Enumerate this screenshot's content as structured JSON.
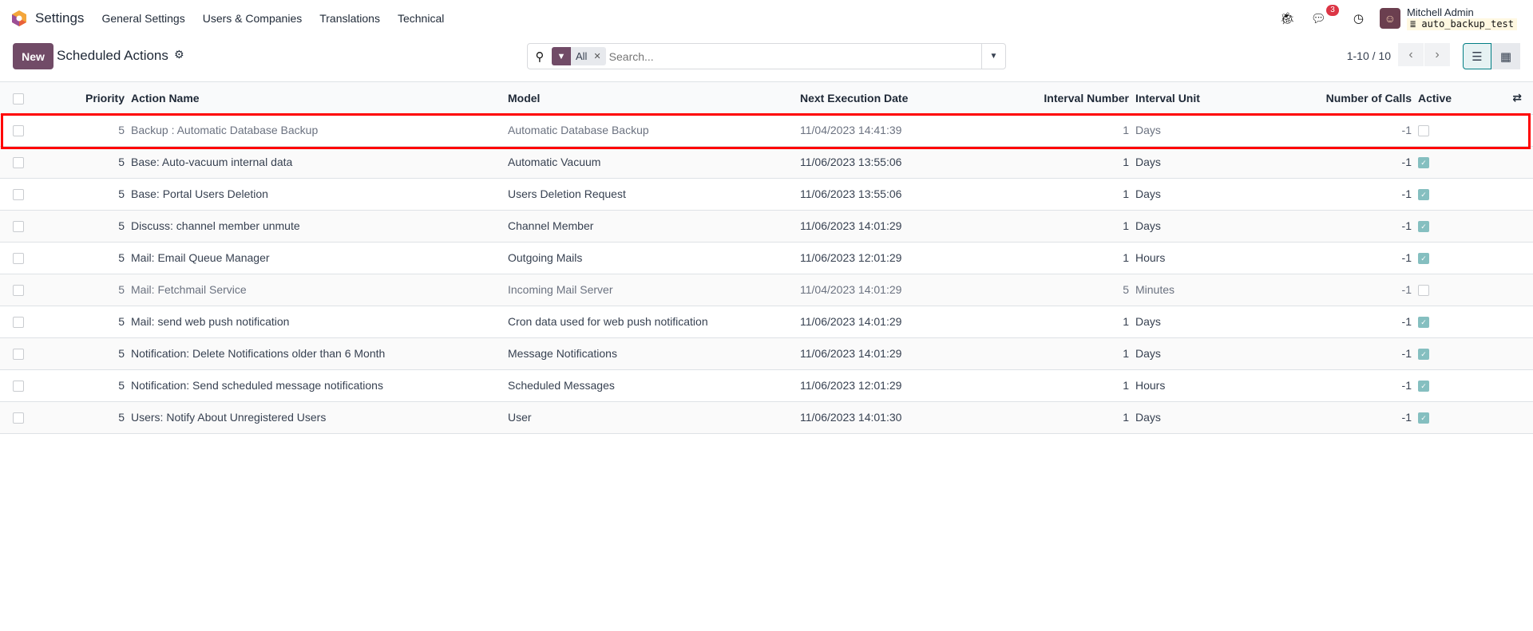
{
  "nav": {
    "app": "Settings",
    "menus": [
      "General Settings",
      "Users & Companies",
      "Translations",
      "Technical"
    ],
    "messages_count": "3",
    "user": "Mitchell Admin",
    "database": "auto_backup_test"
  },
  "control": {
    "new_label": "New",
    "title": "Scheduled Actions",
    "facet": "All",
    "search_placeholder": "Search...",
    "pager": "1-10 / 10"
  },
  "table": {
    "columns": [
      "Priority",
      "Action Name",
      "Model",
      "Next Execution Date",
      "Interval Number",
      "Interval Unit",
      "Number of Calls",
      "Active"
    ],
    "rows": [
      {
        "priority": "5",
        "name": "Backup : Automatic Database Backup",
        "model": "Automatic Database Backup",
        "next": "11/04/2023 14:41:39",
        "num": "1",
        "unit": "Days",
        "calls": "-1",
        "active": false
      },
      {
        "priority": "5",
        "name": "Base: Auto-vacuum internal data",
        "model": "Automatic Vacuum",
        "next": "11/06/2023 13:55:06",
        "num": "1",
        "unit": "Days",
        "calls": "-1",
        "active": true
      },
      {
        "priority": "5",
        "name": "Base: Portal Users Deletion",
        "model": "Users Deletion Request",
        "next": "11/06/2023 13:55:06",
        "num": "1",
        "unit": "Days",
        "calls": "-1",
        "active": true
      },
      {
        "priority": "5",
        "name": "Discuss: channel member unmute",
        "model": "Channel Member",
        "next": "11/06/2023 14:01:29",
        "num": "1",
        "unit": "Days",
        "calls": "-1",
        "active": true
      },
      {
        "priority": "5",
        "name": "Mail: Email Queue Manager",
        "model": "Outgoing Mails",
        "next": "11/06/2023 12:01:29",
        "num": "1",
        "unit": "Hours",
        "calls": "-1",
        "active": true
      },
      {
        "priority": "5",
        "name": "Mail: Fetchmail Service",
        "model": "Incoming Mail Server",
        "next": "11/04/2023 14:01:29",
        "num": "5",
        "unit": "Minutes",
        "calls": "-1",
        "active": false
      },
      {
        "priority": "5",
        "name": "Mail: send web push notification",
        "model": "Cron data used for web push notification",
        "next": "11/06/2023 14:01:29",
        "num": "1",
        "unit": "Days",
        "calls": "-1",
        "active": true
      },
      {
        "priority": "5",
        "name": "Notification: Delete Notifications older than 6 Month",
        "model": "Message Notifications",
        "next": "11/06/2023 14:01:29",
        "num": "1",
        "unit": "Days",
        "calls": "-1",
        "active": true
      },
      {
        "priority": "5",
        "name": "Notification: Send scheduled message notifications",
        "model": "Scheduled Messages",
        "next": "11/06/2023 12:01:29",
        "num": "1",
        "unit": "Hours",
        "calls": "-1",
        "active": true
      },
      {
        "priority": "5",
        "name": "Users: Notify About Unregistered Users",
        "model": "User",
        "next": "11/06/2023 14:01:30",
        "num": "1",
        "unit": "Days",
        "calls": "-1",
        "active": true
      }
    ]
  },
  "colors": {
    "brand": "#714b67",
    "active_check": "#85bfc0",
    "highlight": "#ff0000"
  }
}
